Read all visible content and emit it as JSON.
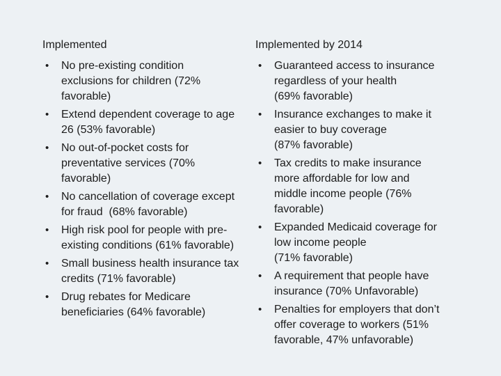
{
  "slide": {
    "background_color": "#edf1f4",
    "text_color": "#1c1c1c",
    "bullet_char": "•",
    "left_column": {
      "title": "Implemented",
      "bullets": [
        [
          "No pre-existing condition",
          "exclusions for children (72%",
          "favorable)"
        ],
        [
          "Extend dependent coverage to age",
          "26 (53% favorable)"
        ],
        [
          "No out-of-pocket costs for",
          "preventative services (70%",
          "favorable)"
        ],
        [
          "No cancellation of coverage except",
          "for fraud  (68% favorable)"
        ],
        [
          "High risk pool for people with pre-",
          "existing conditions (61% favorable)"
        ],
        [
          "Small business health insurance tax",
          "credits (71% favorable)"
        ],
        [
          "Drug rebates for Medicare",
          "beneficiaries (64% favorable)"
        ]
      ]
    },
    "right_column": {
      "title": "Implemented by 2014",
      "bullets": [
        [
          "Guaranteed access to insurance",
          "regardless of your health",
          "(69% favorable)"
        ],
        [
          "Insurance exchanges to make it",
          "easier to buy coverage",
          "(87% favorable)"
        ],
        [
          "Tax credits to make insurance",
          "more affordable for low and",
          "middle income people (76%",
          "favorable)"
        ],
        [
          "Expanded Medicaid coverage for",
          "low income people",
          "(71% favorable)"
        ],
        [
          "A requirement that people have",
          "insurance (70% Unfavorable)"
        ],
        [
          "Penalties for employers that don’t",
          "offer coverage to workers (51%",
          "favorable, 47% unfavorable)"
        ]
      ]
    }
  }
}
